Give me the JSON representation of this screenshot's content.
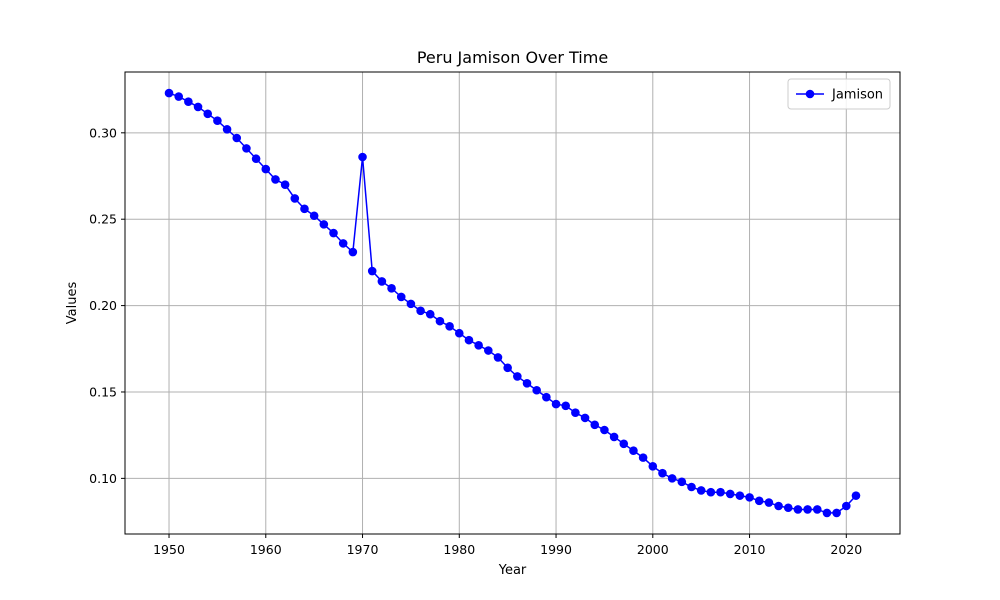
{
  "chart_data": {
    "type": "line",
    "title": "Peru Jamison Over Time",
    "xlabel": "Year",
    "ylabel": "Values",
    "xlim": [
      1945.45,
      2025.55
    ],
    "ylim": [
      0.0678,
      0.3352
    ],
    "xticks": [
      1950,
      1960,
      1970,
      1980,
      1990,
      2000,
      2010,
      2020
    ],
    "yticks": [
      0.1,
      0.15,
      0.2,
      0.25,
      0.3
    ],
    "ytick_labels": [
      "0.10",
      "0.15",
      "0.20",
      "0.25",
      "0.30"
    ],
    "grid": true,
    "legend": {
      "placement": "top-right",
      "entries": [
        "Jamison"
      ]
    },
    "series": [
      {
        "name": "Jamison",
        "color": "#0000ff",
        "marker": "circle",
        "x": [
          1950,
          1951,
          1952,
          1953,
          1954,
          1955,
          1956,
          1957,
          1958,
          1959,
          1960,
          1961,
          1962,
          1963,
          1964,
          1965,
          1966,
          1967,
          1968,
          1969,
          1970,
          1971,
          1972,
          1973,
          1974,
          1975,
          1976,
          1977,
          1978,
          1979,
          1980,
          1981,
          1982,
          1983,
          1984,
          1985,
          1986,
          1987,
          1988,
          1989,
          1990,
          1991,
          1992,
          1993,
          1994,
          1995,
          1996,
          1997,
          1998,
          1999,
          2000,
          2001,
          2002,
          2003,
          2004,
          2005,
          2006,
          2007,
          2008,
          2009,
          2010,
          2011,
          2012,
          2013,
          2014,
          2015,
          2016,
          2017,
          2018,
          2019,
          2020,
          2021
        ],
        "y": [
          0.323,
          0.321,
          0.318,
          0.315,
          0.311,
          0.307,
          0.302,
          0.297,
          0.291,
          0.285,
          0.279,
          0.273,
          0.27,
          0.262,
          0.256,
          0.252,
          0.247,
          0.242,
          0.236,
          0.231,
          0.286,
          0.22,
          0.214,
          0.21,
          0.205,
          0.201,
          0.197,
          0.195,
          0.191,
          0.188,
          0.184,
          0.18,
          0.177,
          0.174,
          0.17,
          0.164,
          0.159,
          0.155,
          0.151,
          0.147,
          0.143,
          0.142,
          0.138,
          0.135,
          0.131,
          0.128,
          0.124,
          0.12,
          0.116,
          0.112,
          0.107,
          0.103,
          0.1,
          0.098,
          0.095,
          0.093,
          0.092,
          0.092,
          0.091,
          0.09,
          0.089,
          0.087,
          0.086,
          0.084,
          0.083,
          0.082,
          0.082,
          0.082,
          0.08,
          0.08,
          0.084,
          0.09
        ]
      }
    ]
  }
}
